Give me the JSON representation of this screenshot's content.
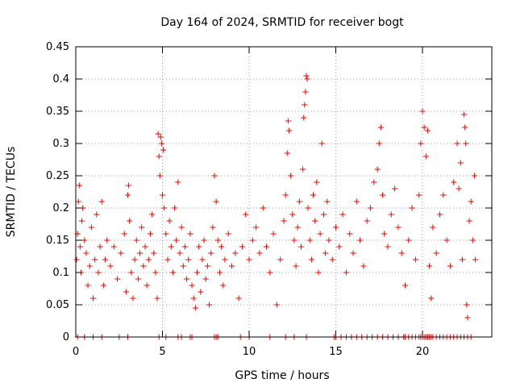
{
  "chart_data": {
    "type": "scatter",
    "title": "Day 164 of 2024, SRMTID for receiver bogt",
    "xlabel": "GPS time / hours",
    "ylabel": "SRMTID / TECUs",
    "xlim": [
      0,
      24
    ],
    "ylim": [
      0,
      0.45
    ],
    "xticks": [
      0,
      5,
      10,
      15,
      20
    ],
    "xtick_labels": [
      "0",
      "5",
      "10",
      "15",
      "20"
    ],
    "yticks": [
      0,
      0.05,
      0.1,
      0.15,
      0.2,
      0.25,
      0.3,
      0.35,
      0.4,
      0.45
    ],
    "ytick_labels": [
      "0",
      "0.05",
      "0.1",
      "0.15",
      "0.2",
      "0.25",
      "0.3",
      "0.35",
      "0.4",
      "0.45"
    ],
    "grid": true,
    "marker": "+",
    "color": "#ff0000",
    "series": [
      {
        "name": "SRMTID",
        "points": [
          [
            0.05,
            0.12
          ],
          [
            0.1,
            0.16
          ],
          [
            0.15,
            0.21
          ],
          [
            0.2,
            0.235
          ],
          [
            0.25,
            0.14
          ],
          [
            0.3,
            0.1
          ],
          [
            0.35,
            0.18
          ],
          [
            0.4,
            0.2
          ],
          [
            0.5,
            0.15
          ],
          [
            0.6,
            0.13
          ],
          [
            0.7,
            0.08
          ],
          [
            0.8,
            0.11
          ],
          [
            0.9,
            0.17
          ],
          [
            1.0,
            0.06
          ],
          [
            1.1,
            0.12
          ],
          [
            1.2,
            0.19
          ],
          [
            1.3,
            0.1
          ],
          [
            1.4,
            0.14
          ],
          [
            1.5,
            0.21
          ],
          [
            1.6,
            0.08
          ],
          [
            1.7,
            0.12
          ],
          [
            1.8,
            0.15
          ],
          [
            2.0,
            0.11
          ],
          [
            2.2,
            0.14
          ],
          [
            2.4,
            0.09
          ],
          [
            2.6,
            0.13
          ],
          [
            2.8,
            0.16
          ],
          [
            2.9,
            0.07
          ],
          [
            3.0,
            0.22
          ],
          [
            3.05,
            0.235
          ],
          [
            3.1,
            0.18
          ],
          [
            3.2,
            0.1
          ],
          [
            3.3,
            0.06
          ],
          [
            3.4,
            0.12
          ],
          [
            3.5,
            0.15
          ],
          [
            3.6,
            0.09
          ],
          [
            3.7,
            0.13
          ],
          [
            3.8,
            0.17
          ],
          [
            3.9,
            0.11
          ],
          [
            4.0,
            0.14
          ],
          [
            4.1,
            0.08
          ],
          [
            4.2,
            0.12
          ],
          [
            4.3,
            0.16
          ],
          [
            4.4,
            0.19
          ],
          [
            4.5,
            0.13
          ],
          [
            4.6,
            0.1
          ],
          [
            4.7,
            0.06
          ],
          [
            4.75,
            0.315
          ],
          [
            4.8,
            0.28
          ],
          [
            4.85,
            0.25
          ],
          [
            4.9,
            0.31
          ],
          [
            4.95,
            0.3
          ],
          [
            5.0,
            0.22
          ],
          [
            5.05,
            0.29
          ],
          [
            5.1,
            0.2
          ],
          [
            5.2,
            0.16
          ],
          [
            5.3,
            0.12
          ],
          [
            5.4,
            0.18
          ],
          [
            5.5,
            0.14
          ],
          [
            5.6,
            0.1
          ],
          [
            5.7,
            0.2
          ],
          [
            5.8,
            0.15
          ],
          [
            5.9,
            0.24
          ],
          [
            6.0,
            0.13
          ],
          [
            6.1,
            0.17
          ],
          [
            6.2,
            0.11
          ],
          [
            6.3,
            0.14
          ],
          [
            6.4,
            0.09
          ],
          [
            6.5,
            0.12
          ],
          [
            6.6,
            0.16
          ],
          [
            6.7,
            0.08
          ],
          [
            6.8,
            0.06
          ],
          [
            6.9,
            0.045
          ],
          [
            7.0,
            0.1
          ],
          [
            7.1,
            0.14
          ],
          [
            7.2,
            0.07
          ],
          [
            7.3,
            0.12
          ],
          [
            7.4,
            0.15
          ],
          [
            7.5,
            0.09
          ],
          [
            7.6,
            0.11
          ],
          [
            7.7,
            0.05
          ],
          [
            7.8,
            0.13
          ],
          [
            7.9,
            0.17
          ],
          [
            8.0,
            0.25
          ],
          [
            8.1,
            0.21
          ],
          [
            8.2,
            0.15
          ],
          [
            8.3,
            0.1
          ],
          [
            8.4,
            0.14
          ],
          [
            8.5,
            0.08
          ],
          [
            8.6,
            0.12
          ],
          [
            8.8,
            0.16
          ],
          [
            9.0,
            0.11
          ],
          [
            9.2,
            0.13
          ],
          [
            9.4,
            0.06
          ],
          [
            9.6,
            0.14
          ],
          [
            9.8,
            0.19
          ],
          [
            10.0,
            0.12
          ],
          [
            10.2,
            0.15
          ],
          [
            10.4,
            0.17
          ],
          [
            10.6,
            0.13
          ],
          [
            10.8,
            0.2
          ],
          [
            11.0,
            0.14
          ],
          [
            11.2,
            0.1
          ],
          [
            11.4,
            0.16
          ],
          [
            11.6,
            0.05
          ],
          [
            11.8,
            0.12
          ],
          [
            12.0,
            0.18
          ],
          [
            12.1,
            0.22
          ],
          [
            12.2,
            0.285
          ],
          [
            12.25,
            0.335
          ],
          [
            12.3,
            0.32
          ],
          [
            12.4,
            0.25
          ],
          [
            12.5,
            0.19
          ],
          [
            12.6,
            0.15
          ],
          [
            12.7,
            0.11
          ],
          [
            12.8,
            0.17
          ],
          [
            12.9,
            0.21
          ],
          [
            13.0,
            0.14
          ],
          [
            13.1,
            0.26
          ],
          [
            13.15,
            0.34
          ],
          [
            13.2,
            0.36
          ],
          [
            13.25,
            0.38
          ],
          [
            13.3,
            0.405
          ],
          [
            13.35,
            0.4
          ],
          [
            13.4,
            0.2
          ],
          [
            13.5,
            0.15
          ],
          [
            13.6,
            0.12
          ],
          [
            13.7,
            0.22
          ],
          [
            13.8,
            0.18
          ],
          [
            13.9,
            0.24
          ],
          [
            14.0,
            0.1
          ],
          [
            14.1,
            0.16
          ],
          [
            14.2,
            0.3
          ],
          [
            14.3,
            0.19
          ],
          [
            14.4,
            0.13
          ],
          [
            14.5,
            0.21
          ],
          [
            14.6,
            0.15
          ],
          [
            14.8,
            0.12
          ],
          [
            15.0,
            0.17
          ],
          [
            15.2,
            0.14
          ],
          [
            15.4,
            0.19
          ],
          [
            15.6,
            0.1
          ],
          [
            15.8,
            0.16
          ],
          [
            16.0,
            0.13
          ],
          [
            16.2,
            0.21
          ],
          [
            16.4,
            0.15
          ],
          [
            16.6,
            0.11
          ],
          [
            16.8,
            0.18
          ],
          [
            17.0,
            0.2
          ],
          [
            17.2,
            0.24
          ],
          [
            17.4,
            0.26
          ],
          [
            17.5,
            0.3
          ],
          [
            17.6,
            0.325
          ],
          [
            17.7,
            0.22
          ],
          [
            17.8,
            0.16
          ],
          [
            18.0,
            0.14
          ],
          [
            18.2,
            0.19
          ],
          [
            18.4,
            0.23
          ],
          [
            18.6,
            0.17
          ],
          [
            18.8,
            0.13
          ],
          [
            19.0,
            0.08
          ],
          [
            19.2,
            0.15
          ],
          [
            19.4,
            0.2
          ],
          [
            19.6,
            0.12
          ],
          [
            19.8,
            0.22
          ],
          [
            19.9,
            0.3
          ],
          [
            20.0,
            0.35
          ],
          [
            20.1,
            0.325
          ],
          [
            20.2,
            0.28
          ],
          [
            20.3,
            0.32
          ],
          [
            20.4,
            0.11
          ],
          [
            20.5,
            0.06
          ],
          [
            20.6,
            0.17
          ],
          [
            20.8,
            0.13
          ],
          [
            21.0,
            0.19
          ],
          [
            21.2,
            0.22
          ],
          [
            21.4,
            0.15
          ],
          [
            21.6,
            0.11
          ],
          [
            21.8,
            0.24
          ],
          [
            22.0,
            0.3
          ],
          [
            22.1,
            0.23
          ],
          [
            22.2,
            0.27
          ],
          [
            22.3,
            0.12
          ],
          [
            22.4,
            0.345
          ],
          [
            22.45,
            0.325
          ],
          [
            22.5,
            0.3
          ],
          [
            22.55,
            0.05
          ],
          [
            22.6,
            0.03
          ],
          [
            22.7,
            0.18
          ],
          [
            22.8,
            0.21
          ],
          [
            22.9,
            0.15
          ],
          [
            23.0,
            0.25
          ],
          [
            23.05,
            0.12
          ]
        ],
        "zeros": [
          0.1,
          0.5,
          1.0,
          1.5,
          2.5,
          3.0,
          4.8,
          5.2,
          5.9,
          6.1,
          6.6,
          6.7,
          8.0,
          8.1,
          8.2,
          9.5,
          10.0,
          11.2,
          12.1,
          12.6,
          13.3,
          14.9,
          15.0,
          15.3,
          15.6,
          15.9,
          16.2,
          16.5,
          16.8,
          17.1,
          17.4,
          17.7,
          18.0,
          18.3,
          18.6,
          18.9,
          19.0,
          19.2,
          19.4,
          19.6,
          19.8,
          19.9,
          20.0,
          20.1,
          20.2,
          20.3,
          20.4,
          20.5,
          20.6,
          20.8,
          21.0,
          21.2,
          21.4,
          21.6,
          21.8,
          22.0,
          22.2,
          22.4,
          22.6,
          22.8
        ]
      }
    ]
  }
}
